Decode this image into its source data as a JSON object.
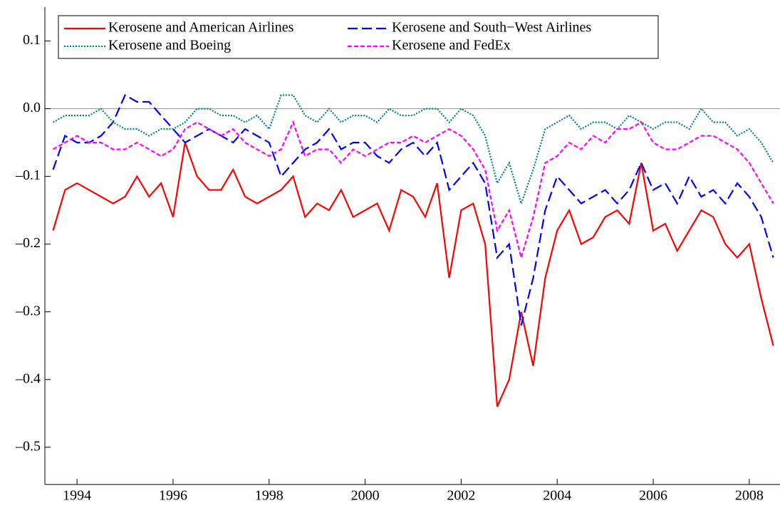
{
  "chart_data": {
    "type": "line",
    "x": [
      1993.5,
      1993.75,
      1994,
      1994.25,
      1994.5,
      1994.75,
      1995,
      1995.25,
      1995.5,
      1995.75,
      1996,
      1996.25,
      1996.5,
      1996.75,
      1997,
      1997.25,
      1997.5,
      1997.75,
      1998,
      1998.25,
      1998.5,
      1998.75,
      1999,
      1999.25,
      1999.5,
      1999.75,
      2000,
      2000.25,
      2000.5,
      2000.75,
      2001,
      2001.25,
      2001.5,
      2001.75,
      2002,
      2002.25,
      2002.5,
      2002.75,
      2003,
      2003.25,
      2003.5,
      2003.75,
      2004,
      2004.25,
      2004.5,
      2004.75,
      2005,
      2005.25,
      2005.5,
      2005.75,
      2006,
      2006.25,
      2006.5,
      2006.75,
      2007,
      2007.25,
      2007.5,
      2007.75,
      2008,
      2008.25,
      2008.5
    ],
    "series": [
      {
        "name": "Kerosene and American Airlines",
        "color": "#ff0000",
        "dash": "solid",
        "values": [
          -0.18,
          -0.12,
          -0.11,
          -0.12,
          -0.13,
          -0.14,
          -0.13,
          -0.1,
          -0.13,
          -0.11,
          -0.16,
          -0.05,
          -0.1,
          -0.12,
          -0.12,
          -0.09,
          -0.13,
          -0.14,
          -0.13,
          -0.12,
          -0.1,
          -0.16,
          -0.14,
          -0.15,
          -0.12,
          -0.16,
          -0.15,
          -0.14,
          -0.18,
          -0.12,
          -0.13,
          -0.16,
          -0.11,
          -0.25,
          -0.15,
          -0.14,
          -0.2,
          -0.44,
          -0.4,
          -0.3,
          -0.38,
          -0.25,
          -0.18,
          -0.15,
          -0.2,
          -0.19,
          -0.16,
          -0.15,
          -0.17,
          -0.08,
          -0.18,
          -0.17,
          -0.21,
          -0.18,
          -0.15,
          -0.16,
          -0.2,
          -0.22,
          -0.2,
          -0.28,
          -0.35
        ]
      },
      {
        "name": "Kerosene and South−West Airlines",
        "color": "#0000ff",
        "dash": "long-dash",
        "values": [
          -0.09,
          -0.04,
          -0.05,
          -0.05,
          -0.04,
          -0.02,
          0.02,
          0.01,
          0.01,
          -0.01,
          -0.03,
          -0.05,
          -0.04,
          -0.03,
          -0.04,
          -0.05,
          -0.03,
          -0.04,
          -0.05,
          -0.1,
          -0.08,
          -0.06,
          -0.05,
          -0.03,
          -0.06,
          -0.05,
          -0.05,
          -0.07,
          -0.08,
          -0.06,
          -0.05,
          -0.07,
          -0.05,
          -0.12,
          -0.1,
          -0.08,
          -0.11,
          -0.22,
          -0.2,
          -0.32,
          -0.25,
          -0.15,
          -0.1,
          -0.12,
          -0.14,
          -0.13,
          -0.12,
          -0.14,
          -0.12,
          -0.08,
          -0.12,
          -0.11,
          -0.14,
          -0.1,
          -0.13,
          -0.12,
          -0.14,
          -0.11,
          -0.13,
          -0.16,
          -0.22
        ]
      },
      {
        "name": "Kerosene and Boeing",
        "color": "#008080",
        "dash": "dotted",
        "values": [
          -0.02,
          -0.01,
          -0.01,
          -0.01,
          0.0,
          -0.02,
          -0.03,
          -0.03,
          -0.04,
          -0.03,
          -0.03,
          -0.02,
          0.0,
          0.0,
          -0.01,
          -0.01,
          -0.02,
          -0.01,
          -0.03,
          0.02,
          0.02,
          -0.01,
          -0.02,
          0.0,
          -0.02,
          -0.01,
          -0.01,
          -0.02,
          0.0,
          -0.01,
          -0.01,
          0.0,
          0.0,
          -0.02,
          0.0,
          -0.01,
          -0.04,
          -0.11,
          -0.08,
          -0.14,
          -0.09,
          -0.03,
          -0.02,
          -0.01,
          -0.03,
          -0.02,
          -0.02,
          -0.03,
          -0.01,
          -0.02,
          -0.03,
          -0.02,
          -0.02,
          -0.03,
          0.0,
          -0.02,
          -0.02,
          -0.04,
          -0.03,
          -0.05,
          -0.08
        ]
      },
      {
        "name": "Kerosene and FedEx",
        "color": "#ff00ff",
        "dash": "dashed",
        "values": [
          -0.06,
          -0.05,
          -0.04,
          -0.05,
          -0.05,
          -0.06,
          -0.06,
          -0.05,
          -0.06,
          -0.07,
          -0.06,
          -0.03,
          -0.02,
          -0.03,
          -0.04,
          -0.03,
          -0.05,
          -0.06,
          -0.07,
          -0.06,
          -0.02,
          -0.07,
          -0.06,
          -0.06,
          -0.08,
          -0.06,
          -0.07,
          -0.06,
          -0.05,
          -0.05,
          -0.04,
          -0.05,
          -0.04,
          -0.03,
          -0.04,
          -0.06,
          -0.09,
          -0.18,
          -0.15,
          -0.22,
          -0.16,
          -0.08,
          -0.07,
          -0.05,
          -0.06,
          -0.04,
          -0.05,
          -0.03,
          -0.03,
          -0.02,
          -0.05,
          -0.06,
          -0.06,
          -0.05,
          -0.04,
          -0.04,
          -0.05,
          -0.06,
          -0.08,
          -0.11,
          -0.14
        ]
      }
    ],
    "xlim": [
      1993.33,
      2008.64
    ],
    "xticks": [
      1994,
      1996,
      1998,
      2000,
      2002,
      2004,
      2006,
      2008
    ],
    "ylim": [
      -0.555,
      0.15
    ],
    "yticks": [
      {
        "value": -0.5,
        "label": "–0.5"
      },
      {
        "value": -0.4,
        "label": "–0.4"
      },
      {
        "value": -0.3,
        "label": "–0.3"
      },
      {
        "value": -0.2,
        "label": "–0.2"
      },
      {
        "value": -0.1,
        "label": "–0.1"
      },
      {
        "value": 0,
        "label": "0.0"
      },
      {
        "value": 0.1,
        "label": "0.1"
      }
    ],
    "zero_line": true,
    "legend": "top-left"
  }
}
